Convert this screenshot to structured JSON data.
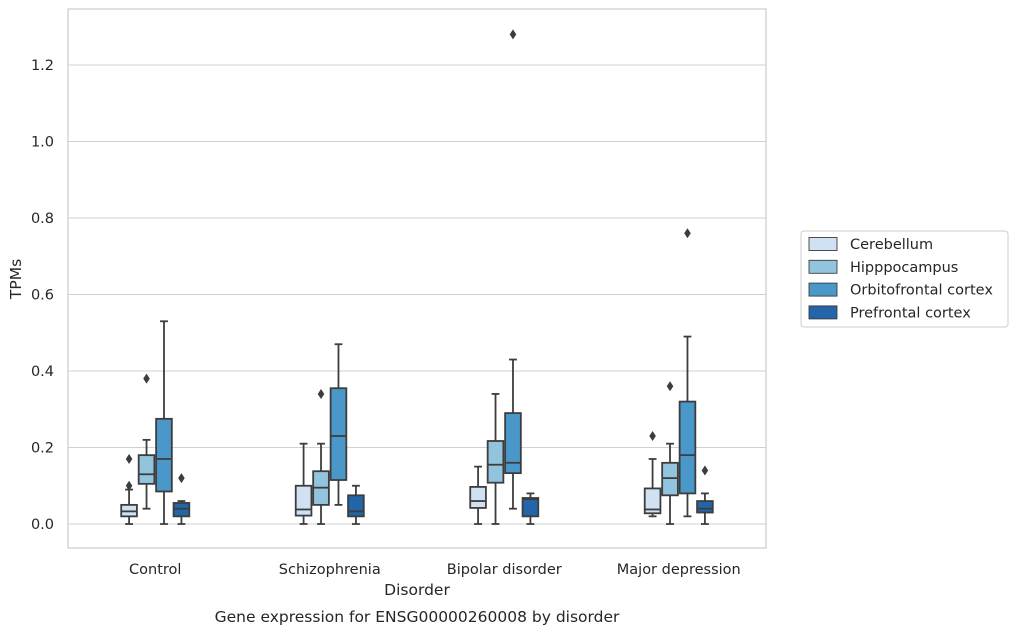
{
  "chart_data": {
    "type": "boxplot",
    "title": "",
    "caption": "Gene expression for ENSG00000260008 by disorder",
    "xlabel": "Disorder",
    "ylabel": "TPMs",
    "ylim": [
      -0.063,
      1.35
    ],
    "yticks": [
      0.0,
      0.2,
      0.4,
      0.6,
      0.8,
      1.0,
      1.2
    ],
    "ytick_labels": [
      "0.0",
      "0.2",
      "0.4",
      "0.6",
      "0.8",
      "1.0",
      "1.2"
    ],
    "categories": [
      "Control",
      "Schizophrenia",
      "Bipolar disorder",
      "Major depression"
    ],
    "grid": "horizontal",
    "legend_position": "right-outside",
    "series": [
      {
        "name": "Cerebellum",
        "color": "#cfe1f2",
        "boxes": [
          {
            "whisker_low": 0.0,
            "q1": 0.02,
            "median": 0.033,
            "q3": 0.05,
            "whisker_high": 0.09,
            "outliers": [
              0.1,
              0.17
            ]
          },
          {
            "whisker_low": 0.0,
            "q1": 0.022,
            "median": 0.038,
            "q3": 0.1,
            "whisker_high": 0.21,
            "outliers": []
          },
          {
            "whisker_low": 0.0,
            "q1": 0.042,
            "median": 0.06,
            "q3": 0.097,
            "whisker_high": 0.15,
            "outliers": []
          },
          {
            "whisker_low": 0.02,
            "q1": 0.028,
            "median": 0.038,
            "q3": 0.093,
            "whisker_high": 0.17,
            "outliers": [
              0.23
            ]
          }
        ]
      },
      {
        "name": "Hipppocampus",
        "color": "#93c4de",
        "boxes": [
          {
            "whisker_low": 0.04,
            "q1": 0.105,
            "median": 0.13,
            "q3": 0.18,
            "whisker_high": 0.22,
            "outliers": [
              0.38
            ]
          },
          {
            "whisker_low": 0.0,
            "q1": 0.05,
            "median": 0.095,
            "q3": 0.138,
            "whisker_high": 0.21,
            "outliers": [
              0.34
            ]
          },
          {
            "whisker_low": 0.0,
            "q1": 0.108,
            "median": 0.155,
            "q3": 0.217,
            "whisker_high": 0.34,
            "outliers": []
          },
          {
            "whisker_low": 0.0,
            "q1": 0.075,
            "median": 0.12,
            "q3": 0.16,
            "whisker_high": 0.21,
            "outliers": [
              0.36
            ]
          }
        ]
      },
      {
        "name": "Orbitofrontal cortex",
        "color": "#4a98c9",
        "boxes": [
          {
            "whisker_low": 0.0,
            "q1": 0.085,
            "median": 0.17,
            "q3": 0.275,
            "whisker_high": 0.53,
            "outliers": []
          },
          {
            "whisker_low": 0.05,
            "q1": 0.115,
            "median": 0.23,
            "q3": 0.355,
            "whisker_high": 0.47,
            "outliers": []
          },
          {
            "whisker_low": 0.04,
            "q1": 0.133,
            "median": 0.16,
            "q3": 0.29,
            "whisker_high": 0.43,
            "outliers": [
              1.28
            ]
          },
          {
            "whisker_low": 0.02,
            "q1": 0.08,
            "median": 0.18,
            "q3": 0.32,
            "whisker_high": 0.49,
            "outliers": [
              0.76
            ]
          }
        ]
      },
      {
        "name": "Prefrontal cortex",
        "color": "#2265a8",
        "boxes": [
          {
            "whisker_low": 0.0,
            "q1": 0.02,
            "median": 0.04,
            "q3": 0.055,
            "whisker_high": 0.06,
            "outliers": [
              0.12
            ]
          },
          {
            "whisker_low": 0.0,
            "q1": 0.02,
            "median": 0.033,
            "q3": 0.075,
            "whisker_high": 0.1,
            "outliers": []
          },
          {
            "whisker_low": 0.0,
            "q1": 0.02,
            "median": 0.065,
            "q3": 0.068,
            "whisker_high": 0.08,
            "outliers": []
          },
          {
            "whisker_low": 0.0,
            "q1": 0.03,
            "median": 0.04,
            "q3": 0.06,
            "whisker_high": 0.08,
            "outliers": [
              0.14
            ]
          }
        ]
      }
    ]
  }
}
